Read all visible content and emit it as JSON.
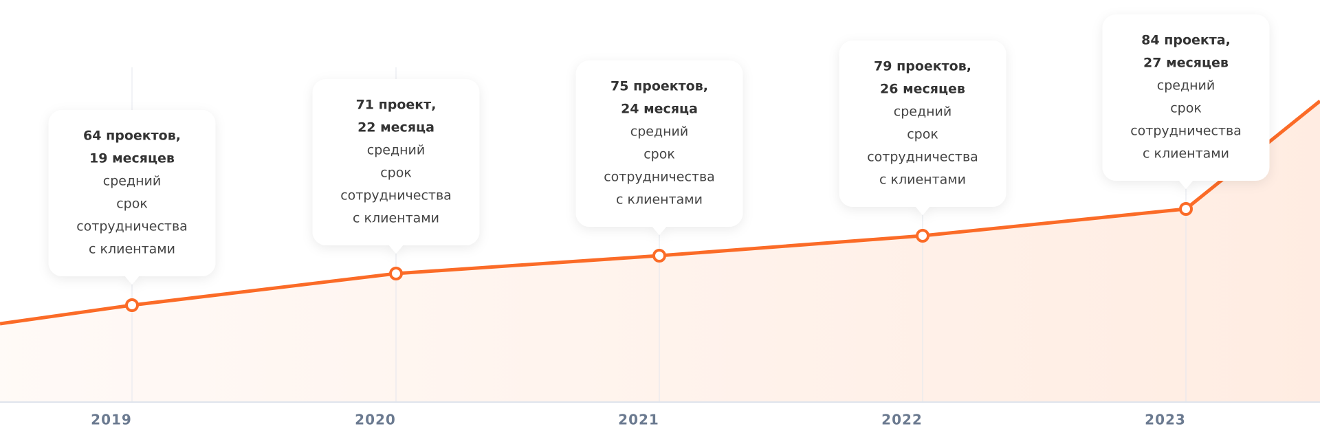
{
  "years": [
    "2019",
    "2020",
    "2021",
    "2022",
    "2023"
  ],
  "cards": [
    {
      "bold": [
        "64 проектов,",
        "19 месяцев"
      ],
      "regular": [
        "средний",
        "срок",
        "сотрудничества",
        "с клиентами"
      ]
    },
    {
      "bold": [
        "71 проект,",
        "22 месяца"
      ],
      "regular": [
        "средний",
        "срок",
        "сотрудничества",
        "с клиентами"
      ]
    },
    {
      "bold": [
        "75 проектов,",
        "24 месяца"
      ],
      "regular": [
        "средний",
        "срок",
        "сотрудничества",
        "с клиентами"
      ]
    },
    {
      "bold": [
        "79 проектов,",
        "26 месяцев"
      ],
      "regular": [
        "средний",
        "срок",
        "сотрудничества",
        "с клиентами"
      ]
    },
    {
      "bold": [
        "84 проекта,",
        "27 месяцев"
      ],
      "regular": [
        "средний",
        "срок",
        "сотрудничества",
        "с клиентами"
      ]
    }
  ]
}
